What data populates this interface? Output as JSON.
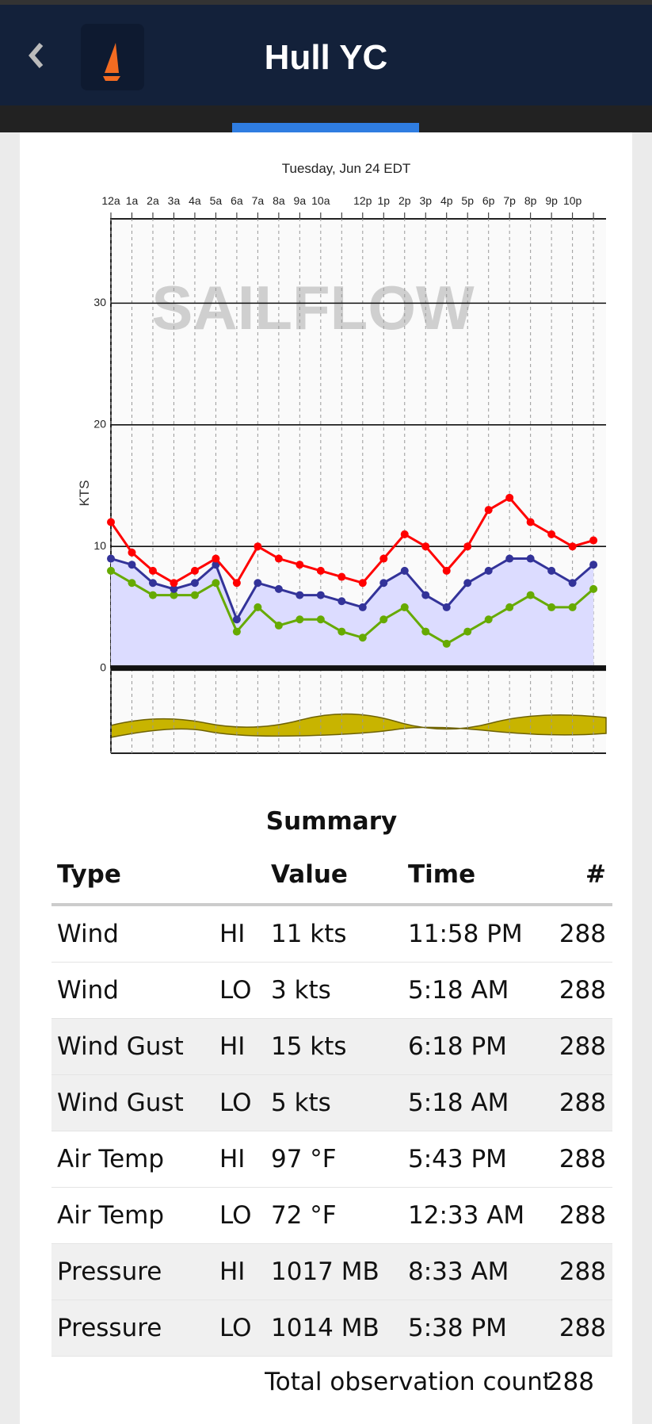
{
  "header": {
    "title": "Hull YC"
  },
  "chart_data": {
    "type": "line",
    "title": "Tuesday, Jun 24 EDT",
    "y_label": "KTS",
    "watermark": "SAILFLOW",
    "categories": [
      "12a",
      "1a",
      "2a",
      "3a",
      "4a",
      "5a",
      "6a",
      "7a",
      "8a",
      "9a",
      "10a",
      null,
      "12p",
      "1p",
      "2p",
      "3p",
      "4p",
      "5p",
      "6p",
      "7p",
      "8p",
      "9p",
      "10p",
      null
    ],
    "series": [
      {
        "color": "#ff0000",
        "values": [
          12,
          9.5,
          8,
          7,
          8,
          9,
          7,
          10,
          9,
          8.5,
          8,
          7.5,
          7,
          9,
          11,
          10,
          8,
          10,
          13,
          14,
          12,
          11,
          10,
          10.5
        ]
      },
      {
        "color": "#333399",
        "fill": "#dcdcff",
        "values": [
          9,
          8.5,
          7,
          6.5,
          7,
          8.5,
          4,
          7,
          6.5,
          6,
          6,
          5.5,
          5,
          7,
          8,
          6,
          5,
          7,
          8,
          9,
          9,
          8,
          7,
          8.5
        ]
      },
      {
        "color": "#66aa00",
        "values": [
          8,
          7,
          6,
          6,
          6,
          7,
          3,
          5,
          3.5,
          4,
          4,
          3,
          2.5,
          4,
          5,
          3,
          2,
          3,
          4,
          5,
          6,
          5,
          5,
          6.5
        ]
      }
    ],
    "ylim": [
      -7,
      37
    ],
    "yticks": [
      0,
      10,
      20,
      30
    ],
    "grid": true
  },
  "summary": {
    "title": "Summary",
    "columns": [
      "Type",
      "Value",
      "Time",
      "#"
    ],
    "rows": [
      [
        "Wind",
        "HI",
        "11 kts",
        "11:58 PM",
        288
      ],
      [
        "Wind",
        "LO",
        "3 kts",
        "5:18 AM",
        288
      ],
      [
        "Wind Gust",
        "HI",
        "15 kts",
        "6:18 PM",
        288
      ],
      [
        "Wind Gust",
        "LO",
        "5 kts",
        "5:18 AM",
        288
      ],
      [
        "Air Temp",
        "HI",
        "97 °F",
        "5:43 PM",
        288
      ],
      [
        "Air Temp",
        "LO",
        "72 °F",
        "12:33 AM",
        288
      ],
      [
        "Pressure",
        "HI",
        "1017 MB",
        "8:33 AM",
        288
      ],
      [
        "Pressure",
        "LO",
        "1014 MB",
        "5:38 PM",
        288
      ]
    ],
    "footer": {
      "label": "Total observation count",
      "value": 288
    }
  }
}
